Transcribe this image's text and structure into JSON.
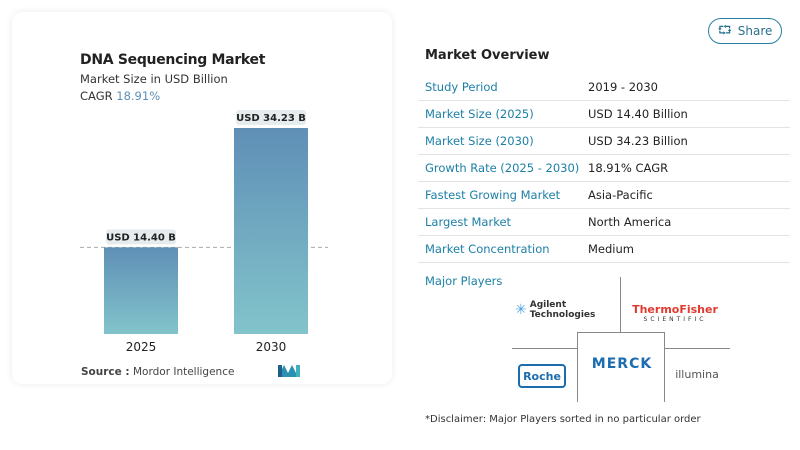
{
  "share": {
    "label": "Share",
    "icon": "share-icon"
  },
  "chart_data": {
    "type": "bar",
    "title": "DNA Sequencing Market",
    "subtitle": "Market Size in USD Billion",
    "cagr_label": "CAGR",
    "cagr_value": "18.91%",
    "categories": [
      "2025",
      "2030"
    ],
    "values": [
      14.4,
      34.23
    ],
    "data_labels": [
      "USD 14.40 B",
      "USD 34.23 B"
    ],
    "ylim": [
      0,
      36
    ],
    "colors": {
      "top": "#5f8fb6",
      "bottom": "#82c4cb"
    }
  },
  "source": {
    "label": "Source :",
    "value": "Mordor Intelligence"
  },
  "overview": {
    "title": "Market Overview",
    "rows": [
      {
        "label": "Study Period",
        "value": "2019 - 2030"
      },
      {
        "label": "Market Size (2025)",
        "value": "USD 14.40 Billion"
      },
      {
        "label": "Market Size (2030)",
        "value": "USD 34.23 Billion"
      },
      {
        "label": "Growth Rate (2025 - 2030)",
        "value": "18.91% CAGR"
      },
      {
        "label": "Fastest Growing Market",
        "value": "Asia-Pacific"
      },
      {
        "label": "Largest Market",
        "value": "North America"
      },
      {
        "label": "Market Concentration",
        "value": "Medium"
      }
    ]
  },
  "players": {
    "title": "Major Players",
    "logos": [
      "Agilent Technologies",
      "ThermoFisher",
      "SCIENTIFIC",
      "MERCK",
      "Roche",
      "illumina"
    ]
  },
  "disclaimer": "*Disclaimer: Major Players sorted in no particular order"
}
